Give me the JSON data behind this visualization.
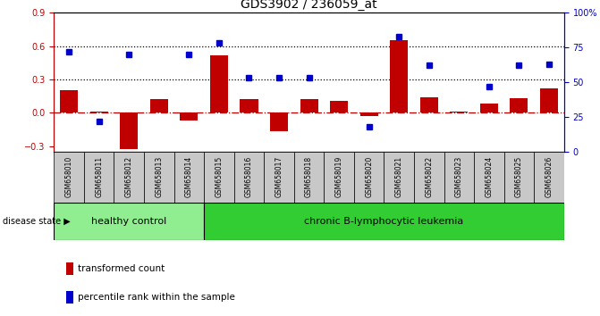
{
  "title": "GDS3902 / 236059_at",
  "samples": [
    "GSM658010",
    "GSM658011",
    "GSM658012",
    "GSM658013",
    "GSM658014",
    "GSM658015",
    "GSM658016",
    "GSM658017",
    "GSM658018",
    "GSM658019",
    "GSM658020",
    "GSM658021",
    "GSM658022",
    "GSM658023",
    "GSM658024",
    "GSM658025",
    "GSM658026"
  ],
  "bar_values": [
    0.2,
    0.01,
    -0.33,
    0.12,
    -0.07,
    0.52,
    0.12,
    -0.17,
    0.12,
    0.11,
    -0.03,
    0.65,
    0.14,
    0.01,
    0.08,
    0.13,
    0.22
  ],
  "dot_values_pct": [
    72,
    22,
    70,
    null,
    70,
    78,
    53,
    53,
    53,
    null,
    18,
    83,
    62,
    null,
    47,
    62,
    63
  ],
  "bar_color": "#C00000",
  "dot_color": "#0000CC",
  "ylim_left": [
    -0.35,
    0.9
  ],
  "ylim_right": [
    0,
    100
  ],
  "yticks_left": [
    -0.3,
    0.0,
    0.3,
    0.6,
    0.9
  ],
  "yticks_right": [
    0,
    25,
    50,
    75,
    100
  ],
  "hlines": [
    0.3,
    0.6
  ],
  "zero_line": 0.0,
  "healthy_control_count": 5,
  "group_labels": [
    "healthy control",
    "chronic B-lymphocytic leukemia"
  ],
  "group_colors": [
    "#90EE90",
    "#32CD32"
  ],
  "legend_items": [
    "transformed count",
    "percentile rank within the sample"
  ],
  "disease_state_label": "disease state",
  "background_plot": "#FFFFFF",
  "background_label": "#C8C8C8",
  "title_fontsize": 10,
  "tick_fontsize": 7,
  "label_fontsize": 8
}
